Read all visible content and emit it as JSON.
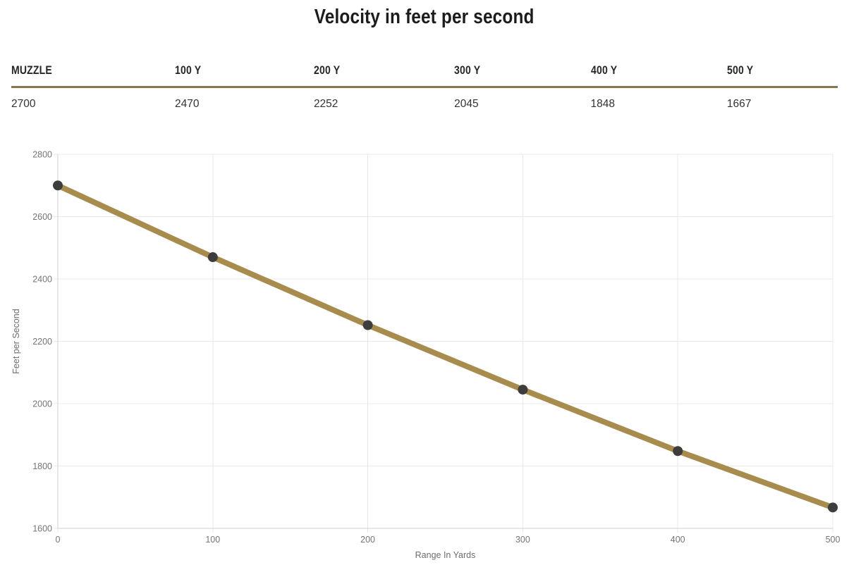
{
  "page": {
    "title": "Velocity in feet per second"
  },
  "table": {
    "headers": [
      "MUZZLE",
      "100 Y",
      "200 Y",
      "300 Y",
      "400 Y",
      "500 Y"
    ],
    "values": [
      "2700",
      "2470",
      "2252",
      "2045",
      "1848",
      "1667"
    ]
  },
  "chart_data": {
    "type": "line",
    "title": "Velocity in feet per second",
    "x": [
      0,
      100,
      200,
      300,
      400,
      500
    ],
    "series": [
      {
        "name": "Velocity",
        "values": [
          2700,
          2470,
          2252,
          2045,
          1848,
          1667
        ]
      }
    ],
    "xlabel": "Range In Yards",
    "ylabel": "Feet per Second",
    "xlim": [
      0,
      500
    ],
    "ylim": [
      1600,
      2800
    ],
    "x_ticks": [
      0,
      100,
      200,
      300,
      400,
      500
    ],
    "y_ticks": [
      1600,
      1800,
      2000,
      2200,
      2400,
      2600,
      2800
    ],
    "grid": true,
    "legend": "none",
    "line_color": "#a78c4d",
    "point_color": "#3d3d3d",
    "grid_color": "#e9e9e9",
    "axis_line_color": "#cfcfcf",
    "tick_label_color": "#757575",
    "axis_title_color": "#6e6e6e"
  },
  "colors": {
    "divider": "#86784e",
    "title_text": "#1c1c1c",
    "header_text": "#262626",
    "value_text": "#333333"
  }
}
